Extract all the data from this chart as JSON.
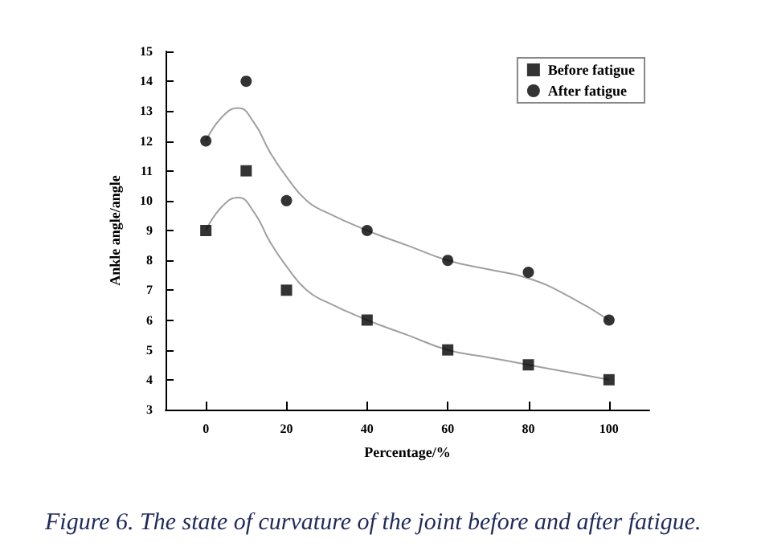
{
  "chart_data": {
    "type": "scatter",
    "xlabel": "Percentage/%",
    "ylabel": "Ankle angle/angle",
    "annotations": [
      "Figure 6. The state of curvature of the joint before and after fatigue."
    ],
    "xlim": [
      -10,
      110
    ],
    "xticks": [
      0,
      20,
      40,
      60,
      80,
      100
    ],
    "ylim": [
      3,
      15
    ],
    "yticks": [
      3,
      4,
      5,
      6,
      7,
      8,
      9,
      10,
      11,
      12,
      13,
      14,
      15
    ],
    "grid": false,
    "legend": "top right",
    "series": [
      {
        "name": "Before fatigue",
        "marker": "square",
        "color": "#000000",
        "x": [
          0,
          10,
          20,
          40,
          60,
          80,
          100
        ],
        "values": [
          9,
          11,
          7,
          6,
          5,
          4.5,
          4
        ]
      },
      {
        "name": "After fatigue",
        "marker": "circle",
        "color": "#000000",
        "x": [
          0,
          10,
          20,
          40,
          60,
          80,
          100
        ],
        "values": [
          12,
          14,
          10,
          9,
          8,
          7.6,
          6
        ]
      },
      {
        "type": "line",
        "marker": "none",
        "line_style": "solid",
        "color": "#a0a0a0",
        "x": [
          0,
          4,
          8,
          12,
          16,
          20,
          25,
          30,
          40,
          50,
          60,
          70,
          80,
          90,
          100
        ],
        "values": [
          9,
          9.8,
          10.1,
          9.6,
          8.6,
          7.8,
          7,
          6.6,
          6,
          5.5,
          5,
          4.75,
          4.5,
          4.25,
          4
        ]
      },
      {
        "type": "line",
        "marker": "none",
        "line_style": "solid",
        "color": "#a0a0a0",
        "x": [
          0,
          4,
          8,
          12,
          16,
          20,
          25,
          30,
          40,
          50,
          60,
          70,
          80,
          90,
          100
        ],
        "values": [
          12,
          12.8,
          13.1,
          12.6,
          11.6,
          10.8,
          10,
          9.6,
          9,
          8.5,
          8,
          7.7,
          7.4,
          6.8,
          6
        ]
      }
    ]
  }
}
